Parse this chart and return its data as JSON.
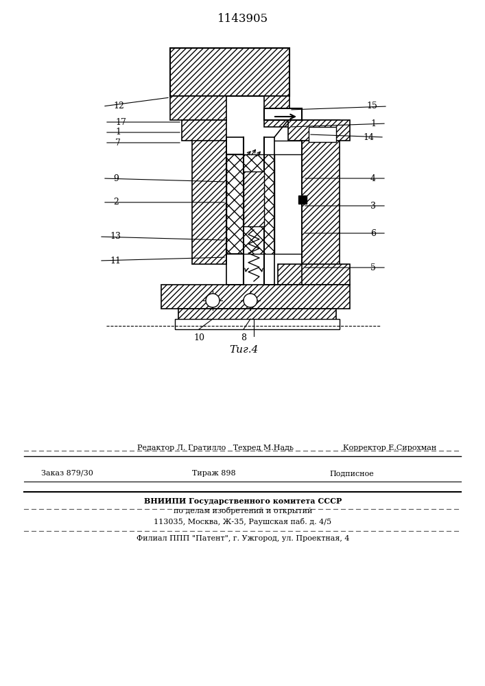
{
  "patent_number": "1143905",
  "fig_label": "Τиг.4",
  "background_color": "#ffffff",
  "line_color": "#000000",
  "footer": {
    "line1_left": "Редактор Л. Гратилло   Техред М.Надь",
    "line1_right": "Корректор Е.Сирохман",
    "line2_left": "Заказ 879/30",
    "line2_mid": "Тираж 898",
    "line2_right": "Подписное",
    "line3": "ВНИИПИ Государственного комитета СССР",
    "line4": "по делам изобретений и открытий",
    "line5": "113035, Москва, Ж-35, Раушская паб. д. 4/5",
    "line6": "Филиал ППП \"Патент\", г. Ужгород, ул. Проектная, 4"
  }
}
